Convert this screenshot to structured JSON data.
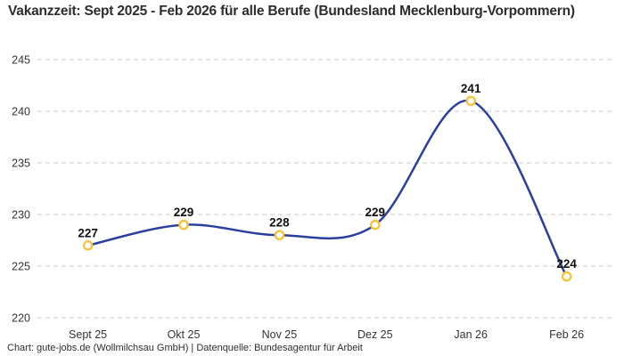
{
  "header": {
    "title": "Vakanzzeit: Sept 2025 - Feb 2026 für alle Berufe (Bundesland Mecklenburg-Vorpommern)"
  },
  "footer": {
    "credit": "Chart: gute-jobs.de (Wollmilchsau GmbH) | Datenquelle: Bundesagentur für Arbeit"
  },
  "colors": {
    "line": "#2b3f9e",
    "marker_stroke": "#f5c33c",
    "marker_fill": "#ffffff",
    "grid": "#c9c9c9",
    "axis_text": "#333333",
    "data_label": "#111111",
    "title_text": "#2d2d2d",
    "background": "#ffffff"
  },
  "chart_data": {
    "type": "line",
    "title": "Vakanzzeit: Sept 2025 - Feb 2026 für alle Berufe (Bundesland Mecklenburg-Vorpommern)",
    "categories": [
      "Sept 25",
      "Okt 25",
      "Nov 25",
      "Dez 25",
      "Jan 26",
      "Feb 26"
    ],
    "values": [
      227,
      229,
      228,
      229,
      241,
      224
    ],
    "ylim": [
      220,
      245
    ],
    "yticks": [
      220,
      225,
      230,
      235,
      240,
      245
    ],
    "ytick_step": 5,
    "xlabel": "",
    "ylabel": "",
    "grid": "horizontal-dashed",
    "legend": "none",
    "curve": "smooth",
    "data_labels": true
  }
}
